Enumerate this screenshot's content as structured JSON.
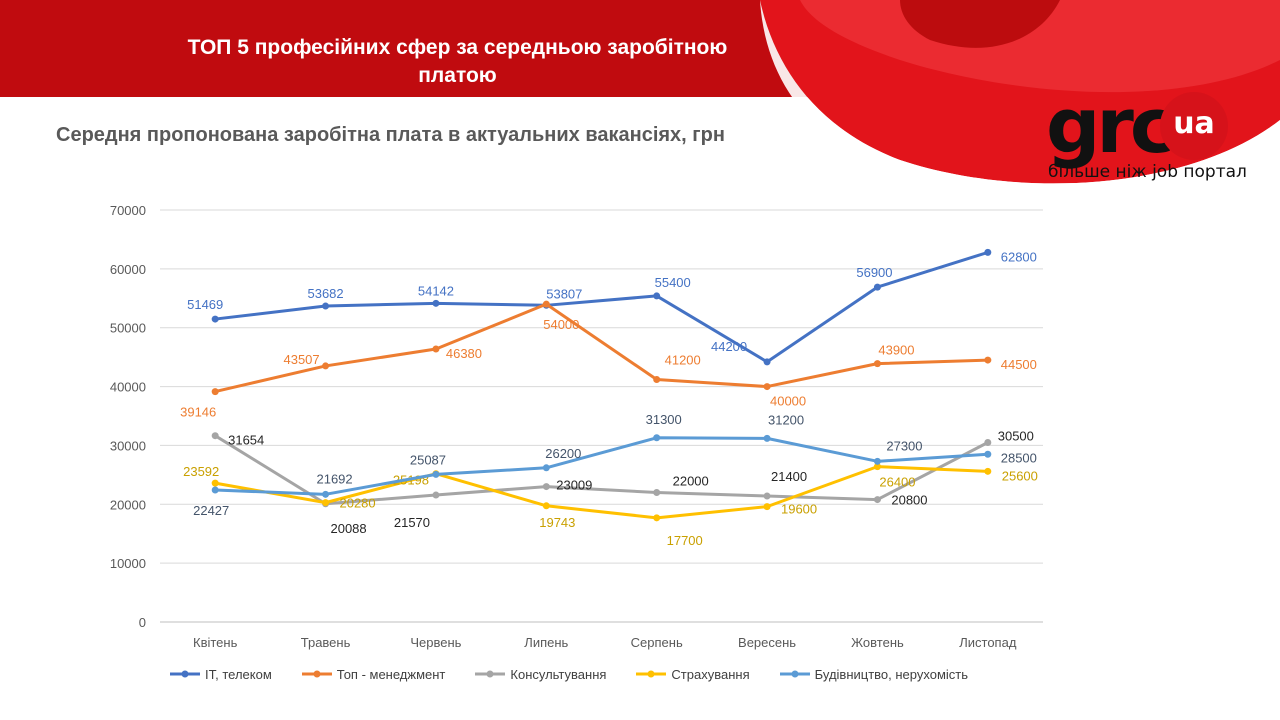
{
  "header": {
    "title": "ТОП 5 професійних сфер за середньою заробітною платою",
    "brand_color": "#c00b0f"
  },
  "logo": {
    "word": "grc",
    "badge": "ua",
    "tagline": "більше ніж job портал"
  },
  "chart_data": {
    "type": "line",
    "title": "Середня пропонована заробітна плата в актуальних вакансіях, грн",
    "xlabel": "",
    "ylabel": "",
    "categories": [
      "Квітень",
      "Травень",
      "Червень",
      "Липень",
      "Серпень",
      "Вересень",
      "Жовтень",
      "Листопад"
    ],
    "ylim": [
      0,
      70000
    ],
    "yticks": [
      0,
      10000,
      20000,
      30000,
      40000,
      50000,
      60000,
      70000
    ],
    "grid": true,
    "legend_position": "bottom",
    "series": [
      {
        "name": "IT, телеком",
        "color": "#4472c4",
        "values": [
          51469,
          53682,
          54142,
          53807,
          55400,
          44200,
          56900,
          62800
        ]
      },
      {
        "name": "Топ - менеджмент",
        "color": "#ed7d31",
        "values": [
          39146,
          43507,
          46380,
          54000,
          41200,
          40000,
          43900,
          44500
        ]
      },
      {
        "name": "Консультування",
        "color": "#a5a5a5",
        "label_color": "#262626",
        "values": [
          31654,
          20088,
          21570,
          23009,
          22000,
          21400,
          20800,
          30500
        ]
      },
      {
        "name": "Страхування",
        "color": "#ffc000",
        "label_color": "#c9a000",
        "values": [
          23592,
          20280,
          25198,
          19743,
          17700,
          19600,
          26400,
          25600
        ]
      },
      {
        "name": "Будівництво, нерухомість",
        "color": "#5b9bd5",
        "label_color": "#44546a",
        "values": [
          22427,
          21692,
          25087,
          26200,
          31300,
          31200,
          27300,
          28500
        ]
      }
    ]
  }
}
